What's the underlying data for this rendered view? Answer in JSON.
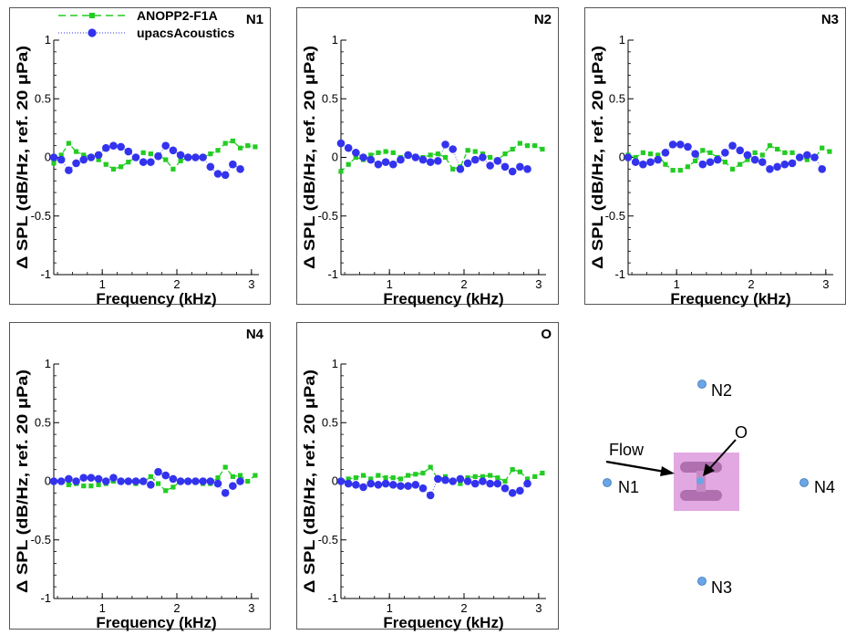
{
  "chart_data": [
    {
      "type": "line",
      "title": "N1",
      "xlabel": "Frequency (kHz)",
      "ylabel": "Δ SPL (dB/Hz, ref. 20 μPa)",
      "xlim": [
        0.35,
        3.1
      ],
      "ylim": [
        -1,
        1
      ],
      "xticks": [
        "1",
        "2",
        "3"
      ],
      "yticks": [
        "-1",
        "-0.5",
        "0",
        "0.5",
        "1"
      ],
      "grid": false,
      "legend": "top-left",
      "series": [
        {
          "name": "ANOPP2-F1A",
          "x": [
            0.35,
            0.45,
            0.55,
            0.65,
            0.75,
            0.85,
            0.95,
            1.05,
            1.15,
            1.25,
            1.35,
            1.45,
            1.55,
            1.65,
            1.75,
            1.85,
            1.95,
            2.05,
            2.15,
            2.25,
            2.35,
            2.45,
            2.55,
            2.65,
            2.75,
            2.85,
            2.95,
            3.05
          ],
          "y": [
            -0.05,
            0.02,
            0.12,
            0.05,
            0.02,
            0.0,
            -0.02,
            -0.06,
            -0.1,
            -0.08,
            -0.04,
            0.0,
            0.04,
            0.03,
            0.02,
            -0.02,
            -0.1,
            -0.03,
            0.0,
            0.0,
            0.0,
            0.03,
            0.06,
            0.12,
            0.14,
            0.08,
            0.1,
            0.09
          ]
        },
        {
          "name": "upacsAcoustics",
          "x": [
            0.35,
            0.45,
            0.55,
            0.65,
            0.75,
            0.85,
            0.95,
            1.05,
            1.15,
            1.25,
            1.35,
            1.45,
            1.55,
            1.65,
            1.75,
            1.85,
            1.95,
            2.05,
            2.15,
            2.25,
            2.35,
            2.45,
            2.55,
            2.65,
            2.75,
            2.85
          ],
          "y": [
            0.0,
            -0.02,
            -0.11,
            -0.05,
            -0.02,
            0.0,
            0.02,
            0.08,
            0.1,
            0.09,
            0.05,
            0.0,
            -0.04,
            -0.04,
            0.01,
            0.1,
            0.06,
            0.02,
            0.0,
            0.0,
            0.0,
            -0.08,
            -0.14,
            -0.15,
            -0.06,
            -0.1
          ]
        }
      ]
    },
    {
      "type": "line",
      "title": "N2",
      "xlabel": "Frequency (kHz)",
      "ylabel": "Δ SPL (dB/Hz, ref. 20 μPa)",
      "xlim": [
        0.35,
        3.1
      ],
      "ylim": [
        -1,
        1
      ],
      "xticks": [
        "1",
        "2",
        "3"
      ],
      "yticks": [
        "-1",
        "-0.5",
        "0",
        "0.5",
        "1"
      ],
      "grid": false,
      "series": [
        {
          "name": "ANOPP2-F1A",
          "x": [
            0.35,
            0.45,
            0.55,
            0.65,
            0.75,
            0.85,
            0.95,
            1.05,
            1.15,
            1.25,
            1.35,
            1.45,
            1.55,
            1.65,
            1.75,
            1.85,
            1.95,
            2.05,
            2.15,
            2.25,
            2.35,
            2.45,
            2.55,
            2.65,
            2.75,
            2.85,
            2.95,
            3.05
          ],
          "y": [
            -0.12,
            -0.06,
            0.0,
            -0.02,
            0.02,
            0.04,
            0.05,
            0.04,
            0.0,
            0.01,
            0.01,
            0.0,
            0.02,
            0.03,
            0.0,
            -0.1,
            -0.08,
            0.06,
            0.05,
            0.03,
            0.0,
            -0.02,
            0.03,
            0.07,
            0.12,
            0.1,
            0.1,
            0.07
          ]
        },
        {
          "name": "upacsAcoustics",
          "x": [
            0.35,
            0.45,
            0.55,
            0.65,
            0.75,
            0.85,
            0.95,
            1.05,
            1.15,
            1.25,
            1.35,
            1.45,
            1.55,
            1.65,
            1.75,
            1.85,
            1.95,
            2.05,
            2.15,
            2.25,
            2.35,
            2.45,
            2.55,
            2.65,
            2.75,
            2.85
          ],
          "y": [
            0.12,
            0.08,
            0.04,
            0.0,
            -0.02,
            -0.06,
            -0.04,
            -0.06,
            -0.02,
            0.02,
            0.0,
            -0.02,
            -0.04,
            -0.03,
            0.11,
            0.07,
            -0.1,
            -0.05,
            -0.02,
            0.0,
            -0.07,
            -0.03,
            -0.08,
            -0.12,
            -0.08,
            -0.1
          ]
        }
      ]
    },
    {
      "type": "line",
      "title": "N3",
      "xlabel": "Frequency (kHz)",
      "ylabel": "Δ SPL (dB/Hz, ref. 20 μPa)",
      "xlim": [
        0.35,
        3.1
      ],
      "ylim": [
        -1,
        1
      ],
      "xticks": [
        "1",
        "2",
        "3"
      ],
      "yticks": [
        "-1",
        "-0.5",
        "0",
        "0.5",
        "1"
      ],
      "grid": false,
      "series": [
        {
          "name": "ANOPP2-F1A",
          "x": [
            0.35,
            0.45,
            0.55,
            0.65,
            0.75,
            0.85,
            0.95,
            1.05,
            1.15,
            1.25,
            1.35,
            1.45,
            1.55,
            1.65,
            1.75,
            1.85,
            1.95,
            2.05,
            2.15,
            2.25,
            2.35,
            2.45,
            2.55,
            2.65,
            2.75,
            2.85,
            2.95,
            3.05
          ],
          "y": [
            0.02,
            0.0,
            0.04,
            0.03,
            0.02,
            -0.06,
            -0.11,
            -0.11,
            -0.08,
            -0.03,
            0.06,
            0.04,
            0.0,
            -0.04,
            -0.1,
            -0.06,
            -0.02,
            0.04,
            0.02,
            0.1,
            0.07,
            0.04,
            0.04,
            0.0,
            -0.02,
            -0.01,
            0.08,
            0.05
          ]
        },
        {
          "name": "upacsAcoustics",
          "x": [
            0.35,
            0.45,
            0.55,
            0.65,
            0.75,
            0.85,
            0.95,
            1.05,
            1.15,
            1.25,
            1.35,
            1.45,
            1.55,
            1.65,
            1.75,
            1.85,
            1.95,
            2.05,
            2.15,
            2.25,
            2.35,
            2.45,
            2.55,
            2.65,
            2.75,
            2.85,
            2.95
          ],
          "y": [
            0.0,
            -0.04,
            -0.06,
            -0.04,
            -0.02,
            0.04,
            0.11,
            0.11,
            0.09,
            0.03,
            -0.06,
            -0.04,
            -0.02,
            0.04,
            0.1,
            0.06,
            0.02,
            -0.02,
            -0.04,
            -0.1,
            -0.08,
            -0.06,
            -0.05,
            0.0,
            0.02,
            0.0,
            -0.1
          ]
        }
      ]
    },
    {
      "type": "line",
      "title": "N4",
      "xlabel": "Frequency (kHz)",
      "ylabel": "Δ SPL (dB/Hz, ref. 20 μPa)",
      "xlim": [
        0.35,
        3.1
      ],
      "ylim": [
        -1,
        1
      ],
      "xticks": [
        "1",
        "2",
        "3"
      ],
      "yticks": [
        "-1",
        "-0.5",
        "0",
        "0.5",
        "1"
      ],
      "grid": false,
      "series": [
        {
          "name": "ANOPP2-F1A",
          "x": [
            0.35,
            0.45,
            0.55,
            0.65,
            0.75,
            0.85,
            0.95,
            1.05,
            1.15,
            1.25,
            1.35,
            1.45,
            1.55,
            1.65,
            1.75,
            1.85,
            1.95,
            2.05,
            2.15,
            2.25,
            2.35,
            2.45,
            2.55,
            2.65,
            2.75,
            2.85,
            2.95,
            3.05
          ],
          "y": [
            0.0,
            0.0,
            -0.03,
            -0.02,
            -0.04,
            -0.04,
            -0.03,
            -0.02,
            0.0,
            0.0,
            0.0,
            -0.02,
            -0.01,
            0.04,
            -0.02,
            -0.08,
            -0.05,
            0.0,
            0.0,
            0.0,
            -0.02,
            -0.02,
            0.03,
            0.12,
            0.04,
            0.05,
            0.0,
            0.05
          ]
        },
        {
          "name": "upacsAcoustics",
          "x": [
            0.35,
            0.45,
            0.55,
            0.65,
            0.75,
            0.85,
            0.95,
            1.05,
            1.15,
            1.25,
            1.35,
            1.45,
            1.55,
            1.65,
            1.75,
            1.85,
            1.95,
            2.05,
            2.15,
            2.25,
            2.35,
            2.45,
            2.55,
            2.65,
            2.75,
            2.85
          ],
          "y": [
            0.0,
            0.0,
            0.02,
            0.0,
            0.03,
            0.03,
            0.02,
            0.0,
            0.03,
            0.0,
            0.0,
            0.0,
            0.0,
            -0.03,
            0.08,
            0.05,
            0.02,
            0.0,
            0.0,
            0.0,
            0.0,
            0.0,
            -0.02,
            -0.1,
            -0.04,
            0.0
          ]
        }
      ]
    },
    {
      "type": "line",
      "title": "O",
      "xlabel": "Frequency (kHz)",
      "ylabel": "Δ SPL (dB/Hz, ref. 20 μPa)",
      "xlim": [
        0.35,
        3.1
      ],
      "ylim": [
        -1,
        1
      ],
      "xticks": [
        "1",
        "2",
        "3"
      ],
      "yticks": [
        "-1",
        "-0.5",
        "0",
        "0.5",
        "1"
      ],
      "grid": false,
      "series": [
        {
          "name": "ANOPP2-F1A",
          "x": [
            0.35,
            0.45,
            0.55,
            0.65,
            0.75,
            0.85,
            0.95,
            1.05,
            1.15,
            1.25,
            1.35,
            1.45,
            1.55,
            1.65,
            1.75,
            1.85,
            1.95,
            2.05,
            2.15,
            2.25,
            2.35,
            2.45,
            2.55,
            2.65,
            2.75,
            2.85,
            2.95,
            3.05
          ],
          "y": [
            0.0,
            0.02,
            0.03,
            0.05,
            0.02,
            0.05,
            0.03,
            0.03,
            0.02,
            0.05,
            0.06,
            0.07,
            0.12,
            0.02,
            0.04,
            0.0,
            -0.02,
            0.03,
            0.04,
            0.04,
            0.05,
            0.03,
            0.0,
            0.1,
            0.08,
            0.02,
            0.04,
            0.07
          ]
        },
        {
          "name": "upacsAcoustics",
          "x": [
            0.35,
            0.45,
            0.55,
            0.65,
            0.75,
            0.85,
            0.95,
            1.05,
            1.15,
            1.25,
            1.35,
            1.45,
            1.55,
            1.65,
            1.75,
            1.85,
            1.95,
            2.05,
            2.15,
            2.25,
            2.35,
            2.45,
            2.55,
            2.65,
            2.75,
            2.85
          ],
          "y": [
            0.0,
            -0.02,
            -0.03,
            -0.05,
            -0.02,
            -0.03,
            -0.02,
            -0.03,
            -0.04,
            -0.04,
            -0.03,
            -0.06,
            -0.12,
            0.02,
            0.01,
            0.0,
            0.02,
            0.0,
            -0.02,
            0.0,
            -0.02,
            -0.02,
            -0.06,
            -0.1,
            -0.08,
            -0.02
          ]
        }
      ]
    }
  ],
  "style": {
    "anopp_color": "#22cc22",
    "upacs_color": "#3333ee",
    "mic_color": "#6aa5e6",
    "model_bg": "#e2a8e2",
    "model_body": "#b070b0"
  },
  "diagram": {
    "flow_label": "Flow",
    "origin_label": "O",
    "mics": [
      "N1",
      "N2",
      "N3",
      "N4"
    ]
  }
}
